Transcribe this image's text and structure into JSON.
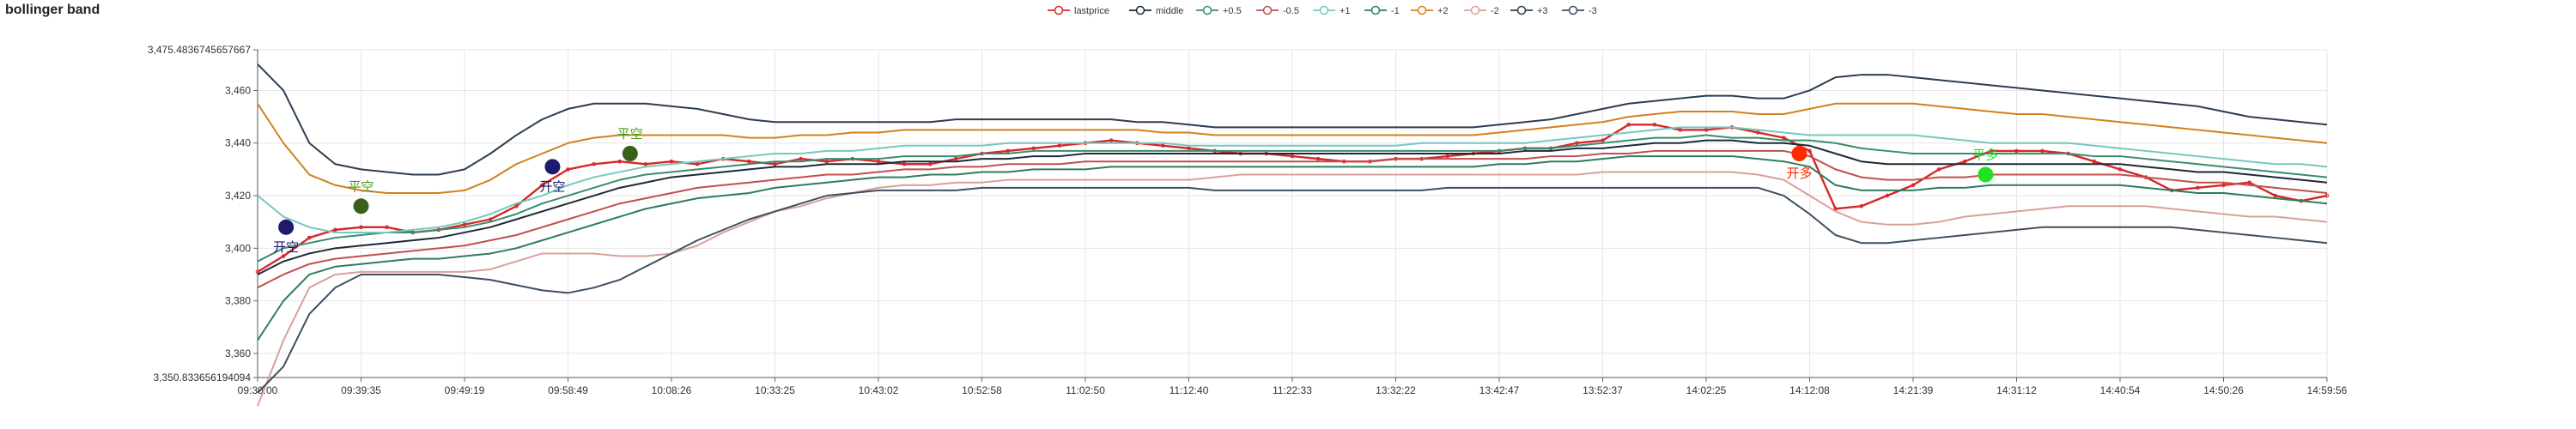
{
  "chart_data": {
    "type": "line",
    "title": "bollinger band",
    "xlabel": "",
    "ylabel": "",
    "ylim": [
      3350.833656194094,
      3475.4836745657667
    ],
    "y_ticks": [
      3360,
      3380,
      3400,
      3420,
      3440,
      3460
    ],
    "y_min_label": "3,350.833656194094",
    "y_max_label": "3,475.4836745657667",
    "x_ticks": [
      "09:30:00",
      "09:39:35",
      "09:49:19",
      "09:58:49",
      "10:08:26",
      "10:33:25",
      "10:43:02",
      "10:52:58",
      "11:02:50",
      "11:12:40",
      "11:22:33",
      "13:32:22",
      "13:42:47",
      "13:52:37",
      "14:02:25",
      "14:12:08",
      "14:21:39",
      "14:31:12",
      "14:40:54",
      "14:50:26",
      "14:59:56"
    ],
    "grid": true,
    "legend_position": "top-center",
    "x": [
      0,
      0.25,
      0.5,
      0.75,
      1,
      1.25,
      1.5,
      1.75,
      2,
      2.25,
      2.5,
      2.75,
      3,
      3.25,
      3.5,
      3.75,
      4,
      4.25,
      4.5,
      4.75,
      5,
      5.25,
      5.5,
      5.75,
      6,
      6.25,
      6.5,
      6.75,
      7,
      7.25,
      7.5,
      7.75,
      8,
      8.25,
      8.5,
      8.75,
      9,
      9.25,
      9.5,
      9.75,
      10,
      10.25,
      10.5,
      10.75,
      11,
      11.25,
      11.5,
      11.75,
      12,
      12.25,
      12.5,
      12.75,
      13,
      13.25,
      13.5,
      13.75,
      14,
      14.25,
      14.5,
      14.75,
      15,
      15.25,
      15.5,
      15.75,
      16,
      16.25,
      16.5,
      16.75,
      17,
      17.25,
      17.5,
      17.75,
      18,
      18.25,
      18.5,
      18.75,
      19,
      19.25,
      19.5,
      19.75,
      20
    ],
    "series": [
      {
        "name": "lastprice",
        "color": "#d62728",
        "values": [
          3391,
          3397,
          3404,
          3407,
          3408,
          3408,
          3406,
          3407,
          3409,
          3411,
          3416,
          3424,
          3430,
          3432,
          3433,
          3432,
          3433,
          3432,
          3434,
          3433,
          3432,
          3434,
          3433,
          3434,
          3433,
          3432,
          3432,
          3434,
          3436,
          3437,
          3438,
          3439,
          3440,
          3441,
          3440,
          3439,
          3438,
          3437,
          3436,
          3436,
          3435,
          3434,
          3433,
          3433,
          3434,
          3434,
          3435,
          3436,
          3437,
          3438,
          3438,
          3440,
          3441,
          3447,
          3447,
          3445,
          3445,
          3446,
          3444,
          3442,
          3437,
          3415,
          3416,
          3420,
          3424,
          3430,
          3433,
          3437,
          3437,
          3437,
          3436,
          3433,
          3430,
          3427,
          3422,
          3423,
          3424,
          3425,
          3420,
          3418,
          3420
        ]
      },
      {
        "name": "middle",
        "color": "#1b2a3a",
        "values": [
          3390,
          3395,
          3398,
          3400,
          3401,
          3402,
          3403,
          3404,
          3406,
          3408,
          3411,
          3414,
          3417,
          3420,
          3423,
          3425,
          3427,
          3428,
          3429,
          3430,
          3431,
          3431,
          3432,
          3432,
          3432,
          3433,
          3433,
          3433,
          3434,
          3434,
          3435,
          3435,
          3436,
          3436,
          3436,
          3436,
          3436,
          3436,
          3436,
          3436,
          3436,
          3436,
          3436,
          3436,
          3436,
          3436,
          3436,
          3436,
          3436,
          3437,
          3437,
          3438,
          3438,
          3439,
          3440,
          3440,
          3441,
          3441,
          3440,
          3440,
          3439,
          3436,
          3433,
          3432,
          3432,
          3432,
          3432,
          3432,
          3432,
          3432,
          3432,
          3432,
          3432,
          3431,
          3430,
          3429,
          3429,
          3428,
          3427,
          3426,
          3425
        ]
      },
      {
        "name": "+0.5",
        "color": "#3a8c6e",
        "values": [
          3395,
          3400,
          3402,
          3404,
          3405,
          3406,
          3406,
          3407,
          3408,
          3410,
          3413,
          3417,
          3420,
          3423,
          3426,
          3428,
          3429,
          3430,
          3431,
          3432,
          3433,
          3433,
          3434,
          3434,
          3434,
          3435,
          3435,
          3435,
          3436,
          3436,
          3437,
          3437,
          3437,
          3437,
          3437,
          3437,
          3437,
          3437,
          3437,
          3437,
          3437,
          3437,
          3437,
          3437,
          3437,
          3437,
          3437,
          3437,
          3437,
          3438,
          3438,
          3439,
          3440,
          3441,
          3442,
          3442,
          3443,
          3442,
          3442,
          3441,
          3441,
          3440,
          3438,
          3437,
          3436,
          3436,
          3436,
          3436,
          3436,
          3436,
          3436,
          3435,
          3435,
          3434,
          3433,
          3432,
          3431,
          3430,
          3429,
          3428,
          3427
        ]
      },
      {
        "name": "-0.5",
        "color": "#c0504d",
        "values": [
          3385,
          3390,
          3394,
          3396,
          3397,
          3398,
          3399,
          3400,
          3401,
          3403,
          3405,
          3408,
          3411,
          3414,
          3417,
          3419,
          3421,
          3423,
          3424,
          3425,
          3426,
          3427,
          3428,
          3428,
          3429,
          3430,
          3430,
          3431,
          3431,
          3432,
          3432,
          3432,
          3433,
          3433,
          3433,
          3433,
          3433,
          3433,
          3433,
          3433,
          3433,
          3433,
          3433,
          3433,
          3434,
          3434,
          3434,
          3434,
          3434,
          3434,
          3435,
          3435,
          3436,
          3436,
          3437,
          3437,
          3437,
          3437,
          3437,
          3437,
          3435,
          3430,
          3427,
          3426,
          3426,
          3427,
          3427,
          3428,
          3428,
          3428,
          3428,
          3428,
          3428,
          3427,
          3426,
          3425,
          3425,
          3424,
          3423,
          3422,
          3421
        ]
      },
      {
        "name": "+1",
        "color": "#76c7c0",
        "values": [
          3420,
          3412,
          3408,
          3406,
          3406,
          3406,
          3407,
          3408,
          3410,
          3413,
          3417,
          3420,
          3424,
          3427,
          3429,
          3431,
          3432,
          3433,
          3434,
          3435,
          3436,
          3436,
          3437,
          3437,
          3438,
          3439,
          3439,
          3439,
          3439,
          3440,
          3440,
          3440,
          3440,
          3440,
          3440,
          3440,
          3439,
          3439,
          3439,
          3439,
          3439,
          3439,
          3439,
          3439,
          3439,
          3440,
          3440,
          3440,
          3440,
          3440,
          3441,
          3442,
          3443,
          3444,
          3445,
          3446,
          3446,
          3446,
          3445,
          3444,
          3443,
          3443,
          3443,
          3443,
          3443,
          3442,
          3441,
          3440,
          3440,
          3440,
          3440,
          3439,
          3438,
          3437,
          3436,
          3435,
          3434,
          3433,
          3432,
          3432,
          3431
        ]
      },
      {
        "name": "-1",
        "color": "#2e7d5b",
        "values": [
          3365,
          3380,
          3390,
          3393,
          3394,
          3395,
          3396,
          3396,
          3397,
          3398,
          3400,
          3403,
          3406,
          3409,
          3412,
          3415,
          3417,
          3419,
          3420,
          3421,
          3423,
          3424,
          3425,
          3426,
          3427,
          3427,
          3428,
          3428,
          3429,
          3429,
          3430,
          3430,
          3430,
          3431,
          3431,
          3431,
          3431,
          3431,
          3431,
          3431,
          3431,
          3431,
          3431,
          3431,
          3431,
          3431,
          3431,
          3431,
          3432,
          3432,
          3433,
          3433,
          3434,
          3435,
          3435,
          3435,
          3435,
          3435,
          3434,
          3433,
          3431,
          3424,
          3422,
          3422,
          3422,
          3423,
          3423,
          3424,
          3424,
          3424,
          3424,
          3424,
          3424,
          3423,
          3422,
          3421,
          3421,
          3420,
          3419,
          3418,
          3417
        ]
      },
      {
        "name": "+2",
        "color": "#d4801c",
        "values": [
          3455,
          3440,
          3428,
          3424,
          3422,
          3421,
          3421,
          3421,
          3422,
          3426,
          3432,
          3436,
          3440,
          3442,
          3443,
          3443,
          3443,
          3443,
          3443,
          3442,
          3442,
          3443,
          3443,
          3444,
          3444,
          3445,
          3445,
          3445,
          3445,
          3445,
          3445,
          3445,
          3445,
          3445,
          3445,
          3444,
          3444,
          3443,
          3443,
          3443,
          3443,
          3443,
          3443,
          3443,
          3443,
          3443,
          3443,
          3443,
          3444,
          3445,
          3446,
          3447,
          3448,
          3450,
          3451,
          3452,
          3452,
          3452,
          3451,
          3451,
          3453,
          3455,
          3455,
          3455,
          3455,
          3454,
          3453,
          3452,
          3451,
          3451,
          3450,
          3449,
          3448,
          3447,
          3446,
          3445,
          3444,
          3443,
          3442,
          3441,
          3440
        ]
      },
      {
        "name": "-2",
        "color": "#d9a09a",
        "values": [
          3340,
          3365,
          3385,
          3390,
          3391,
          3391,
          3391,
          3391,
          3391,
          3392,
          3395,
          3398,
          3398,
          3398,
          3397,
          3397,
          3398,
          3401,
          3406,
          3410,
          3414,
          3416,
          3419,
          3421,
          3423,
          3424,
          3424,
          3425,
          3425,
          3426,
          3426,
          3426,
          3426,
          3426,
          3426,
          3426,
          3426,
          3427,
          3428,
          3428,
          3428,
          3428,
          3428,
          3428,
          3428,
          3428,
          3428,
          3428,
          3428,
          3428,
          3428,
          3428,
          3429,
          3429,
          3429,
          3429,
          3429,
          3429,
          3428,
          3426,
          3420,
          3414,
          3410,
          3409,
          3409,
          3410,
          3412,
          3413,
          3414,
          3415,
          3416,
          3416,
          3416,
          3416,
          3415,
          3414,
          3413,
          3412,
          3412,
          3411,
          3410
        ]
      },
      {
        "name": "+3",
        "color": "#2c3e50",
        "values": [
          3470,
          3460,
          3440,
          3432,
          3430,
          3429,
          3428,
          3428,
          3430,
          3436,
          3443,
          3449,
          3453,
          3455,
          3455,
          3455,
          3454,
          3453,
          3451,
          3449,
          3448,
          3448,
          3448,
          3448,
          3448,
          3448,
          3448,
          3449,
          3449,
          3449,
          3449,
          3449,
          3449,
          3449,
          3448,
          3448,
          3447,
          3446,
          3446,
          3446,
          3446,
          3446,
          3446,
          3446,
          3446,
          3446,
          3446,
          3446,
          3447,
          3448,
          3449,
          3451,
          3453,
          3455,
          3456,
          3457,
          3458,
          3458,
          3457,
          3457,
          3460,
          3465,
          3466,
          3466,
          3465,
          3464,
          3463,
          3462,
          3461,
          3460,
          3459,
          3458,
          3457,
          3456,
          3455,
          3454,
          3452,
          3450,
          3449,
          3448,
          3447
        ]
      },
      {
        "name": "-3",
        "color": "#3d4f60",
        "values": [
          3345,
          3355,
          3375,
          3385,
          3390,
          3390,
          3390,
          3390,
          3389,
          3388,
          3386,
          3384,
          3383,
          3385,
          3388,
          3393,
          3398,
          3403,
          3407,
          3411,
          3414,
          3417,
          3420,
          3421,
          3422,
          3422,
          3422,
          3422,
          3423,
          3423,
          3423,
          3423,
          3423,
          3423,
          3423,
          3423,
          3423,
          3422,
          3422,
          3422,
          3422,
          3422,
          3422,
          3422,
          3422,
          3422,
          3423,
          3423,
          3423,
          3423,
          3423,
          3423,
          3423,
          3423,
          3423,
          3423,
          3423,
          3423,
          3423,
          3420,
          3413,
          3405,
          3402,
          3402,
          3403,
          3404,
          3405,
          3406,
          3407,
          3408,
          3408,
          3408,
          3408,
          3408,
          3408,
          3407,
          3406,
          3405,
          3404,
          3403,
          3402
        ]
      }
    ],
    "signals": [
      {
        "label": "开空",
        "x": 1.1,
        "y": 3408,
        "color": "#1f1a6b",
        "label_color": "#1f1a6b"
      },
      {
        "label": "平空",
        "x": 4.0,
        "y": 3416,
        "color": "#3a5f1a",
        "label_color": "#4a9a1a"
      },
      {
        "label": "开空",
        "x": 11.4,
        "y": 3431,
        "color": "#1f1a6b",
        "label_color": "#1f1a6b"
      },
      {
        "label": "平空",
        "x": 14.4,
        "y": 3436,
        "color": "#3a5f1a",
        "label_color": "#4a9a1a"
      },
      {
        "label": "开多",
        "x": 59.6,
        "y": 3436,
        "color": "#ff2a00",
        "label_color": "#ff2a00"
      },
      {
        "label": "平多",
        "x": 66.8,
        "y": 3428,
        "color": "#22e022",
        "label_color": "#22e022"
      }
    ]
  }
}
